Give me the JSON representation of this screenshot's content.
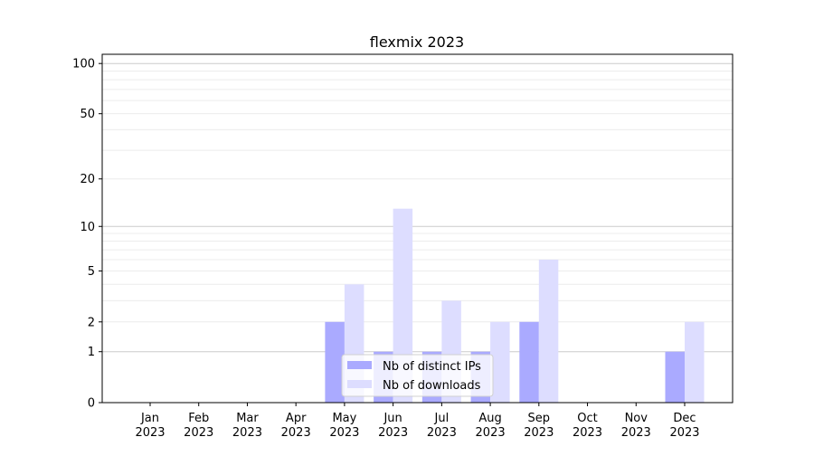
{
  "chart_data": {
    "type": "bar",
    "title": "flexmix 2023",
    "xlabel": "",
    "ylabel": "",
    "yscale": "log(1+y)",
    "ylim": [
      0,
      110
    ],
    "yticks": [
      0,
      1,
      2,
      5,
      10,
      20,
      50,
      100
    ],
    "grid": true,
    "legend_position": "lower-center",
    "categories": [
      "Jan\n2023",
      "Feb\n2023",
      "Mar\n2023",
      "Apr\n2023",
      "May\n2023",
      "Jun\n2023",
      "Jul\n2023",
      "Aug\n2023",
      "Sep\n2023",
      "Oct\n2023",
      "Nov\n2023",
      "Dec\n2023"
    ],
    "series": [
      {
        "name": "Nb of distinct IPs",
        "color": "#aaaaff",
        "values": [
          0,
          0,
          0,
          0,
          2,
          1,
          1,
          1,
          2,
          0,
          0,
          1
        ]
      },
      {
        "name": "Nb of downloads",
        "color": "#ddddff",
        "values": [
          0,
          0,
          0,
          0,
          4,
          13,
          3,
          2,
          6,
          0,
          0,
          2
        ]
      }
    ]
  }
}
